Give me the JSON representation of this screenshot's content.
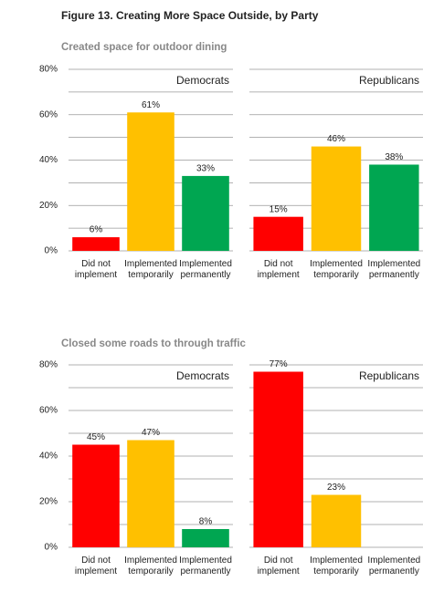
{
  "title": "Figure 13. Creating More Space Outside, by Party",
  "sections": [
    "Created space for outdoor dining",
    "Closed some roads to through traffic"
  ],
  "chart_data": [
    {
      "type": "bar",
      "title": "Democrats",
      "categories": [
        "Did not implement",
        "Implemented temporarily",
        "Implemented permanently"
      ],
      "values": [
        6,
        61,
        33
      ],
      "value_labels": [
        "6%",
        "61%",
        "33%"
      ],
      "colors": [
        "#ff0000",
        "#ffc000",
        "#00a651"
      ],
      "ylim": [
        0,
        80
      ],
      "yticks": [
        {
          "value": 0,
          "label": "0%"
        },
        {
          "value": 20,
          "label": "20%"
        },
        {
          "value": 40,
          "label": "40%"
        },
        {
          "value": 60,
          "label": "60%"
        },
        {
          "value": 80,
          "label": "80%"
        }
      ],
      "minor_yticks": [
        10,
        30,
        50,
        70
      ],
      "grid": true
    },
    {
      "type": "bar",
      "title": "Republicans",
      "categories": [
        "Did not implement",
        "Implemented temporarily",
        "Implemented permanently"
      ],
      "values": [
        15,
        46,
        38
      ],
      "value_labels": [
        "15%",
        "46%",
        "38%"
      ],
      "colors": [
        "#ff0000",
        "#ffc000",
        "#00a651"
      ],
      "ylim": [
        0,
        80
      ],
      "minor_yticks": [
        0,
        10,
        20,
        30,
        40,
        50,
        60,
        70,
        80
      ],
      "grid": true
    },
    {
      "type": "bar",
      "title": "Democrats",
      "categories": [
        "Did not implement",
        "Implemented temporarily",
        "Implemented permanently"
      ],
      "values": [
        45,
        47,
        8
      ],
      "value_labels": [
        "45%",
        "47%",
        "8%"
      ],
      "colors": [
        "#ff0000",
        "#ffc000",
        "#00a651"
      ],
      "ylim": [
        0,
        80
      ],
      "yticks": [
        {
          "value": 0,
          "label": "0%"
        },
        {
          "value": 20,
          "label": "20%"
        },
        {
          "value": 40,
          "label": "40%"
        },
        {
          "value": 60,
          "label": "60%"
        },
        {
          "value": 80,
          "label": "80%"
        }
      ],
      "minor_yticks": [
        10,
        30,
        50,
        70
      ],
      "grid": true
    },
    {
      "type": "bar",
      "title": "Republicans",
      "categories": [
        "Did not implement",
        "Implemented temporarily",
        "Implemented permanently"
      ],
      "values": [
        77,
        23,
        null
      ],
      "value_labels": [
        "77%",
        "23%",
        null
      ],
      "colors": [
        "#ff0000",
        "#ffc000",
        "#00a651"
      ],
      "ylim": [
        0,
        80
      ],
      "minor_yticks": [
        0,
        10,
        20,
        30,
        40,
        50,
        60,
        70,
        80
      ],
      "grid": true
    }
  ]
}
